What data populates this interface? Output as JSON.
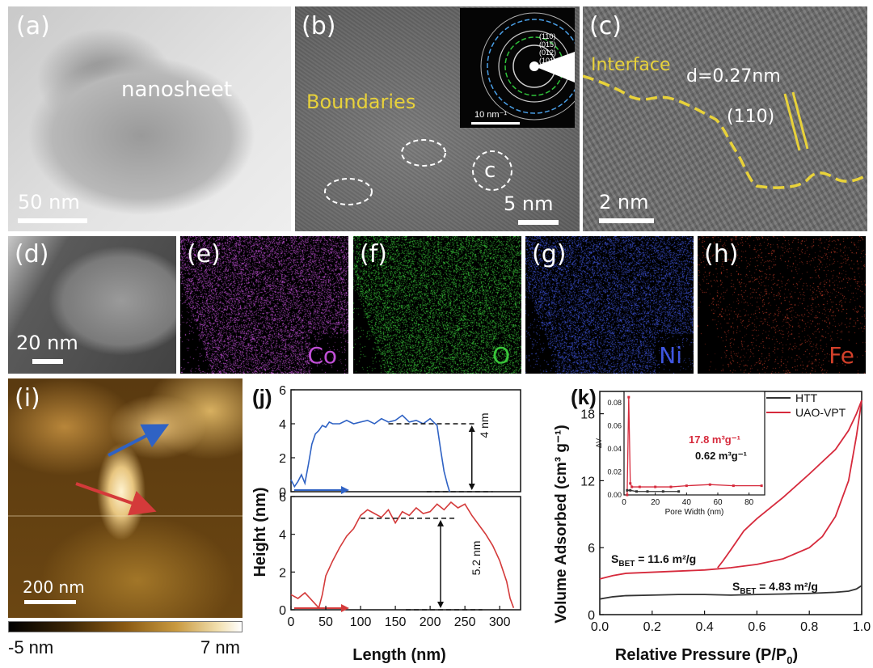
{
  "panels": {
    "a": {
      "label": "(a)",
      "annotation": "nanosheet",
      "scale_bar": "50 nm"
    },
    "b": {
      "label": "(b)",
      "annotation": "Boundaries",
      "scale_bar": "5 nm",
      "circle_label": "c",
      "inset": {
        "scale_bar": "10 nm⁻¹",
        "rings": [
          "(110)",
          "(015)",
          "(012)",
          "(101)"
        ]
      }
    },
    "c": {
      "label": "(c)",
      "annotation": "Interface",
      "d_spacing": "d=0.27nm",
      "plane": "(110)",
      "scale_bar": "2 nm"
    },
    "d": {
      "label": "(d)",
      "scale_bar": "20 nm"
    },
    "e": {
      "label": "(e)",
      "element": "Co",
      "color": "#c04fd6"
    },
    "f": {
      "label": "(f)",
      "element": "O",
      "color": "#39c83a"
    },
    "g": {
      "label": "(g)",
      "element": "Ni",
      "color": "#3f56e0"
    },
    "h": {
      "label": "(h)",
      "element": "Fe",
      "color": "#d3402a"
    },
    "i": {
      "label": "(i)",
      "scale_bar": "200 nm",
      "colorbar_min": "-5 nm",
      "colorbar_max": "7 nm"
    },
    "j": {
      "label": "(j)",
      "ylabel": "Height (nm)",
      "xlabel": "Length (nm)",
      "top_annotation": "4 nm",
      "bottom_annotation": "5.2 nm"
    },
    "k": {
      "label": "(k)",
      "ylabel": "Volume Adsorbed (cm³ g⁻¹)",
      "xlabel": "Relative Pressure (P/P",
      "xlabel_sub": "0",
      "xlabel_end": ")",
      "sbet_red_main": "S",
      "sbet_red_sub": "BET",
      "sbet_red_val": " = 11.6  m²/g",
      "sbet_black_main": "S",
      "sbet_black_sub": "BET",
      "sbet_black_val": " = 4.83 m²/g",
      "inset": {
        "xlabel": "Pore Width (nm)",
        "ylabel": "ΔV",
        "red_text": "17.8 m³g⁻¹",
        "black_text": "0.62 m³g⁻¹"
      }
    }
  },
  "colors": {
    "afm_profile_top": "#2f62c4",
    "afm_profile_bottom": "#d43a3a",
    "htt": "#333333",
    "uao_vpt": "#d62a3c",
    "annotation_yellow": "#e8d23a"
  },
  "chart_data": [
    {
      "type": "line",
      "title": "",
      "xlabel": "Length (nm)",
      "ylabel": "Height (nm)",
      "xlim": [
        0,
        330
      ],
      "ylim": [
        0,
        6
      ],
      "xticks": [
        0,
        50,
        100,
        150,
        200,
        250,
        300
      ],
      "yticks": [
        0,
        2,
        4,
        6
      ],
      "series": [
        {
          "color": "#2f62c4",
          "x": [
            0,
            5,
            10,
            15,
            20,
            25,
            30,
            35,
            40,
            45,
            50,
            55,
            60,
            70,
            80,
            90,
            100,
            110,
            120,
            130,
            140,
            150,
            160,
            170,
            180,
            190,
            200,
            205,
            210,
            215,
            220,
            225,
            228
          ],
          "y": [
            0.7,
            0.3,
            0.6,
            1.0,
            0.5,
            1.6,
            2.8,
            3.4,
            3.6,
            3.9,
            3.8,
            4.1,
            4.0,
            4.0,
            4.2,
            4.0,
            4.1,
            4.2,
            4.0,
            4.3,
            4.1,
            4.2,
            4.5,
            4.1,
            4.2,
            4.0,
            4.3,
            4.1,
            3.9,
            2.5,
            1.2,
            0.4,
            0.0
          ]
        }
      ]
    },
    {
      "type": "line",
      "title": "",
      "xlabel": "Length (nm)",
      "ylabel": "Height (nm)",
      "xlim": [
        0,
        330
      ],
      "ylim": [
        0,
        6
      ],
      "xticks": [
        0,
        50,
        100,
        150,
        200,
        250,
        300
      ],
      "yticks": [
        0,
        2,
        4,
        6
      ],
      "series": [
        {
          "color": "#d43a3a",
          "x": [
            0,
            10,
            20,
            30,
            40,
            45,
            50,
            60,
            70,
            80,
            90,
            100,
            110,
            120,
            130,
            140,
            150,
            160,
            170,
            180,
            190,
            200,
            210,
            220,
            230,
            240,
            250,
            260,
            270,
            280,
            290,
            300,
            310,
            315,
            320
          ],
          "y": [
            0.8,
            0.6,
            0.9,
            0.5,
            0.1,
            0.8,
            1.8,
            2.6,
            3.3,
            3.9,
            4.3,
            5.0,
            5.3,
            5.1,
            4.9,
            5.3,
            4.6,
            5.2,
            5.0,
            5.4,
            5.1,
            5.2,
            5.6,
            5.3,
            5.7,
            5.4,
            5.6,
            5.0,
            4.5,
            4.0,
            3.4,
            2.6,
            1.5,
            0.6,
            0.1
          ]
        }
      ]
    },
    {
      "type": "line",
      "title": "",
      "xlabel": "Relative Pressure (P/P0)",
      "ylabel": "Volume Adsorbed (cm3 g-1)",
      "xlim": [
        0.0,
        1.0
      ],
      "ylim": [
        0,
        20
      ],
      "xticks": [
        0.0,
        0.2,
        0.4,
        0.6,
        0.8,
        1.0
      ],
      "yticks": [
        0,
        6,
        12,
        18
      ],
      "legend": "top-right",
      "series": [
        {
          "name": "HTT",
          "color": "#333333",
          "x": [
            0.0,
            0.05,
            0.1,
            0.2,
            0.3,
            0.4,
            0.5,
            0.6,
            0.7,
            0.8,
            0.9,
            0.95,
            0.98,
            1.0
          ],
          "y": [
            1.4,
            1.6,
            1.7,
            1.75,
            1.8,
            1.8,
            1.75,
            1.8,
            1.85,
            1.9,
            2.0,
            2.1,
            2.3,
            2.6
          ]
        },
        {
          "name": "UAO-VPT",
          "color": "#d62a3c",
          "x": [
            0.0,
            0.05,
            0.1,
            0.2,
            0.3,
            0.4,
            0.45,
            0.5,
            0.6,
            0.7,
            0.8,
            0.85,
            0.9,
            0.95,
            0.98,
            1.0
          ],
          "y": [
            3.2,
            3.5,
            3.7,
            3.8,
            3.9,
            4.0,
            4.1,
            4.2,
            4.5,
            5.0,
            6.0,
            7.0,
            8.8,
            12.0,
            16.0,
            19.2
          ]
        },
        {
          "name": "UAO-VPT desorption",
          "color": "#d62a3c",
          "x": [
            1.0,
            0.98,
            0.95,
            0.9,
            0.8,
            0.7,
            0.6,
            0.55,
            0.5,
            0.47,
            0.45
          ],
          "y": [
            19.2,
            18.0,
            16.5,
            14.8,
            12.6,
            10.5,
            8.6,
            7.5,
            5.8,
            4.8,
            4.2
          ]
        }
      ]
    },
    {
      "type": "line",
      "title": "",
      "xlabel": "Pore Width (nm)",
      "ylabel": "ΔV",
      "xlim": [
        0,
        90
      ],
      "ylim": [
        0,
        0.09
      ],
      "xticks": [
        0,
        20,
        40,
        60,
        80
      ],
      "yticks": [
        0.0,
        0.02,
        0.04,
        0.06,
        0.08
      ],
      "series": [
        {
          "name": "UAO-VPT",
          "color": "#d62a3c",
          "x": [
            2,
            3,
            4,
            5,
            10,
            20,
            30,
            40,
            55,
            70,
            88
          ],
          "y": [
            0.0,
            0.085,
            0.01,
            0.007,
            0.007,
            0.007,
            0.007,
            0.008,
            0.009,
            0.008,
            0.008
          ]
        },
        {
          "name": "HTT",
          "color": "#333333",
          "x": [
            2,
            4,
            8,
            15,
            25,
            35
          ],
          "y": [
            0.004,
            0.004,
            0.003,
            0.003,
            0.003,
            0.003
          ]
        }
      ]
    }
  ]
}
